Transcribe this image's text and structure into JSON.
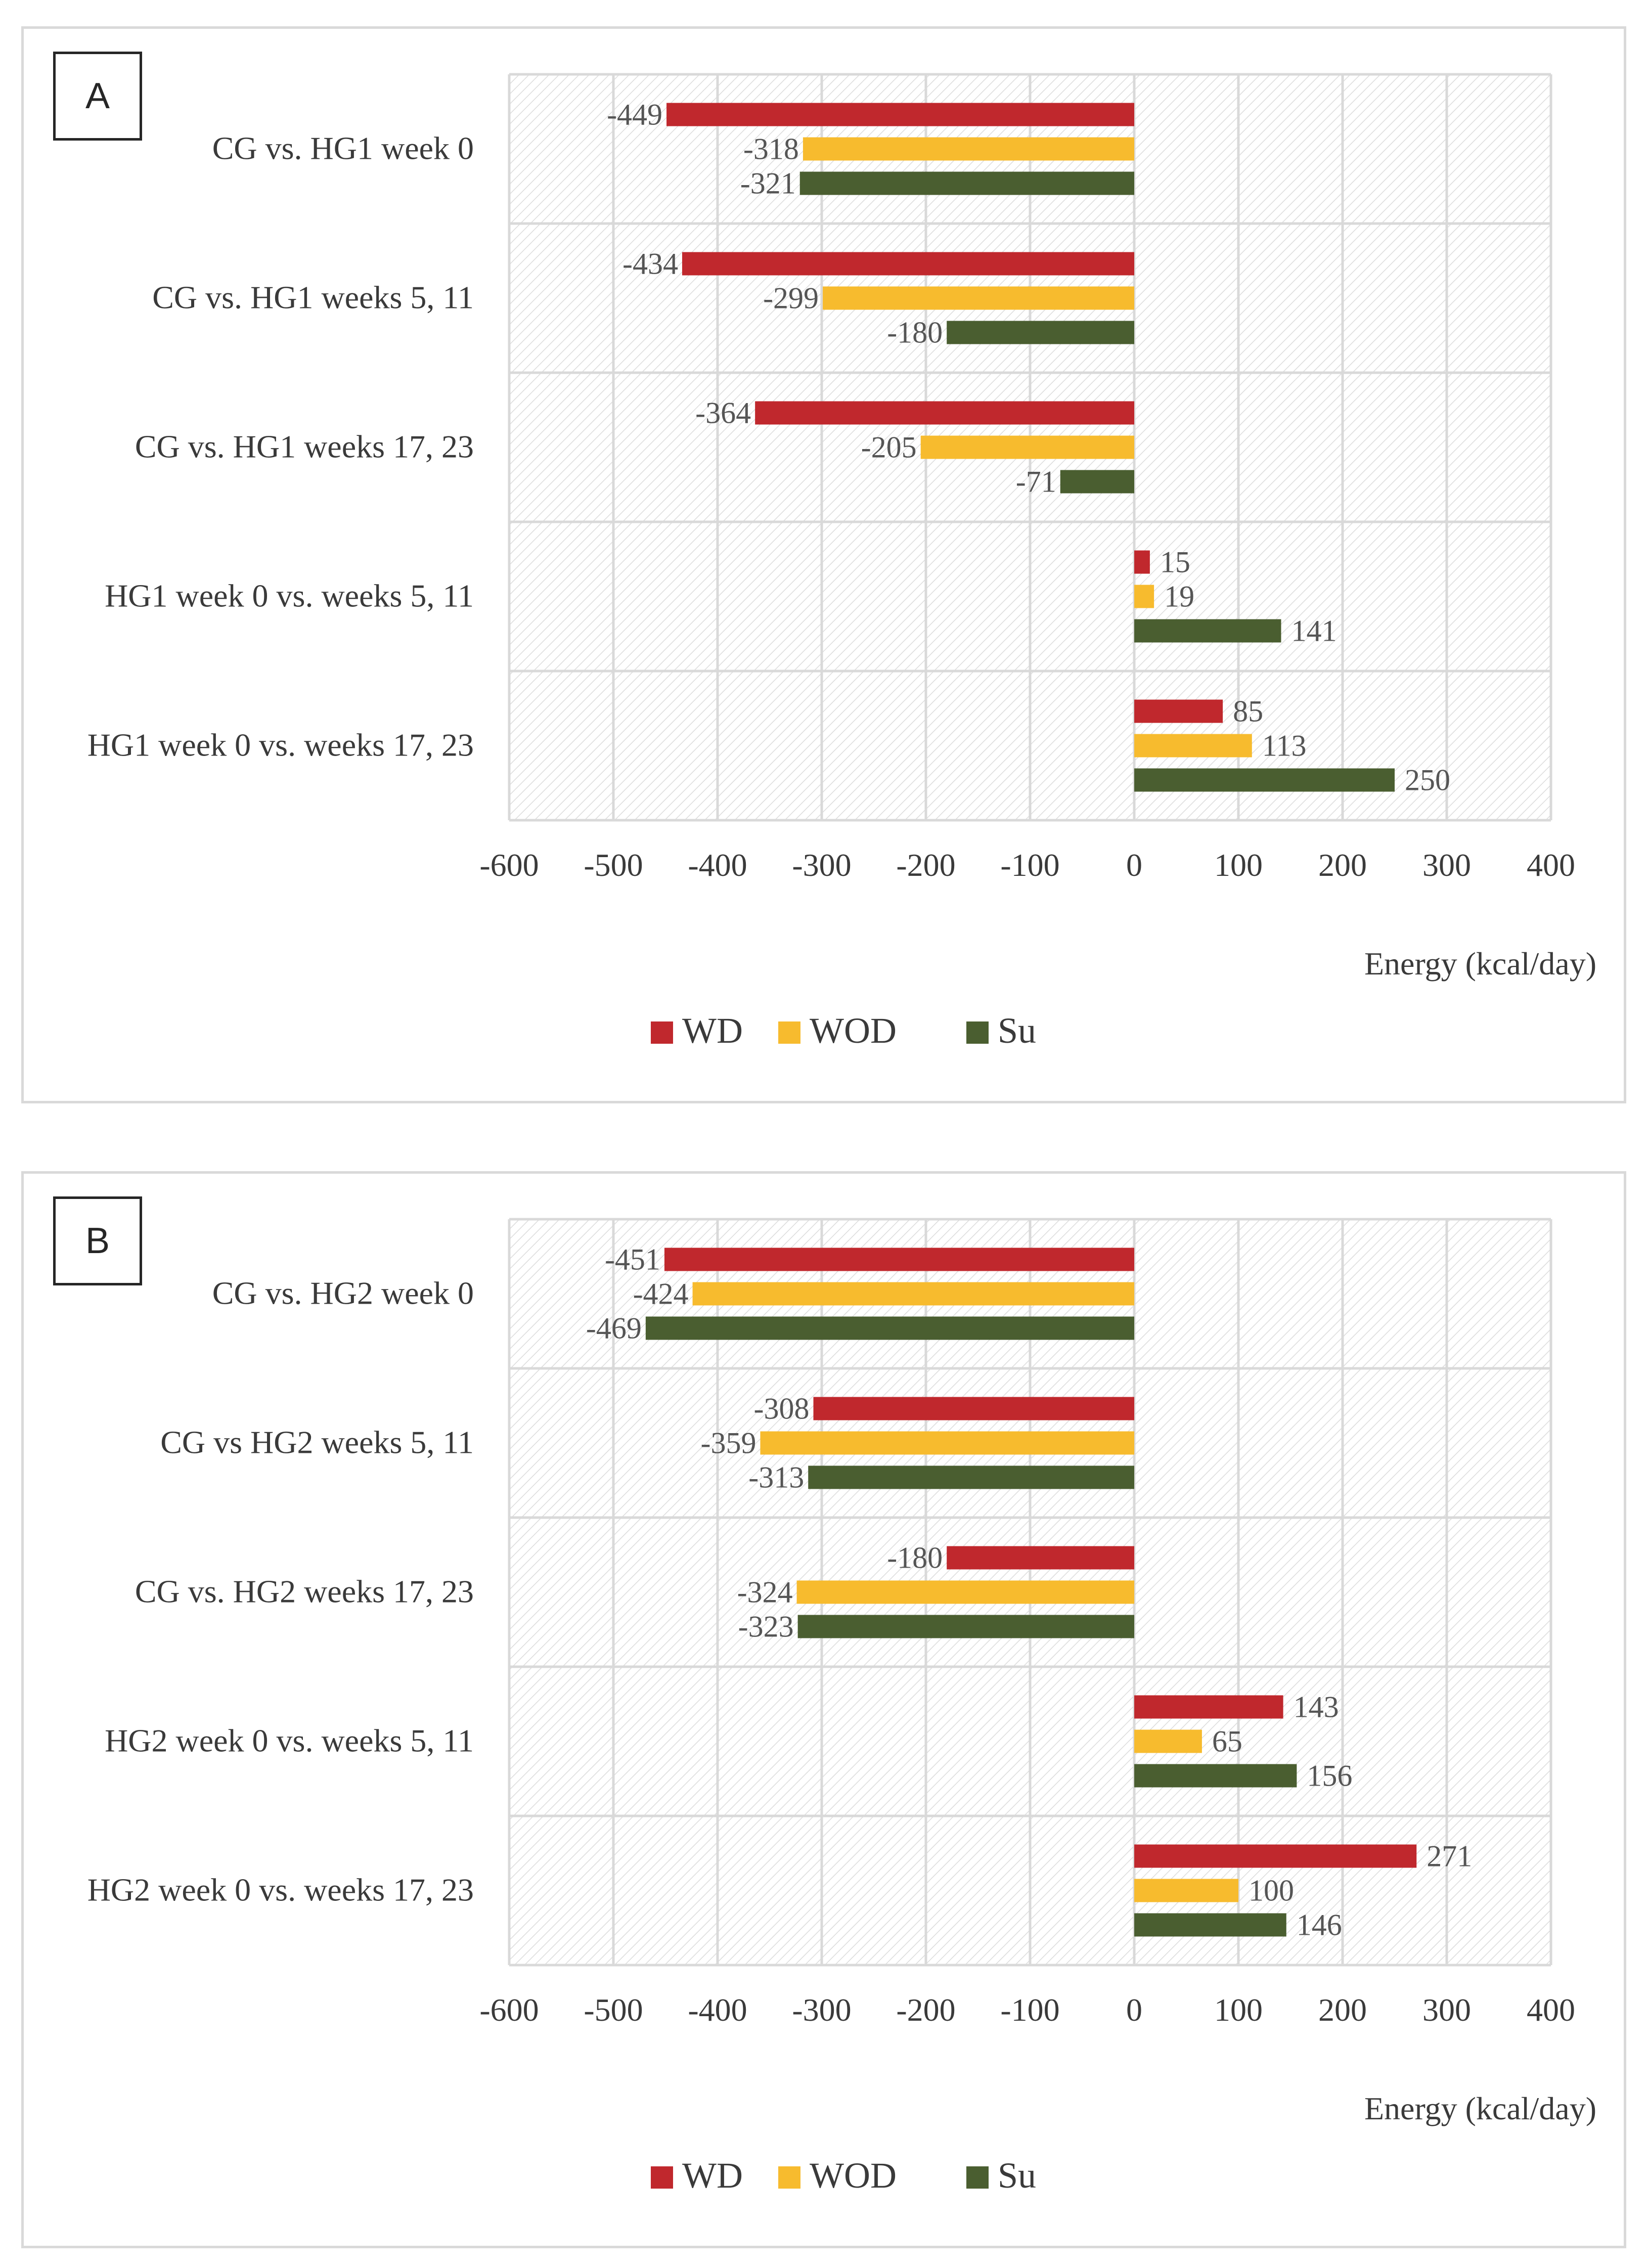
{
  "chart_data": [
    {
      "type": "bar",
      "orientation": "horizontal",
      "panel_label": "A",
      "categories": [
        "CG vs. HG1 week 0",
        "CG vs. HG1 weeks 5, 11",
        "CG vs. HG1 weeks 17, 23",
        "HG1 week 0 vs. weeks 5, 11",
        "HG1 week 0 vs. weeks 17, 23"
      ],
      "series": [
        {
          "name": "WD",
          "color": "#c0282d",
          "values": [
            -449,
            -434,
            -364,
            15,
            85
          ]
        },
        {
          "name": "WOD",
          "color": "#f7bb2e",
          "values": [
            -318,
            -299,
            -205,
            19,
            113
          ]
        },
        {
          "name": "Su",
          "color": "#4a5e30",
          "values": [
            -321,
            -180,
            -71,
            141,
            250
          ]
        }
      ],
      "xlabel": "Energy (kcal/day)",
      "xlim": [
        -600,
        400
      ],
      "xticks": [
        -600,
        -500,
        -400,
        -300,
        -200,
        -100,
        0,
        100,
        200,
        300,
        400
      ],
      "grid": true,
      "legend": "bottom-center"
    },
    {
      "type": "bar",
      "orientation": "horizontal",
      "panel_label": "B",
      "categories": [
        "CG vs. HG2 week 0",
        "CG vs HG2 weeks 5, 11",
        "CG vs. HG2 weeks 17, 23",
        "HG2 week 0 vs. weeks 5, 11",
        "HG2 week 0 vs. weeks 17, 23"
      ],
      "series": [
        {
          "name": "WD",
          "color": "#c0282d",
          "values": [
            -451,
            -308,
            -180,
            143,
            271
          ]
        },
        {
          "name": "WOD",
          "color": "#f7bb2e",
          "values": [
            -424,
            -359,
            -324,
            65,
            100
          ]
        },
        {
          "name": "Su",
          "color": "#4a5e30",
          "values": [
            -469,
            -313,
            -323,
            156,
            146
          ]
        }
      ],
      "xlabel": "Energy (kcal/day)",
      "xlim": [
        -600,
        400
      ],
      "xticks": [
        -600,
        -500,
        -400,
        -300,
        -200,
        -100,
        0,
        100,
        200,
        300,
        400
      ],
      "grid": true,
      "legend": "bottom-center"
    }
  ]
}
